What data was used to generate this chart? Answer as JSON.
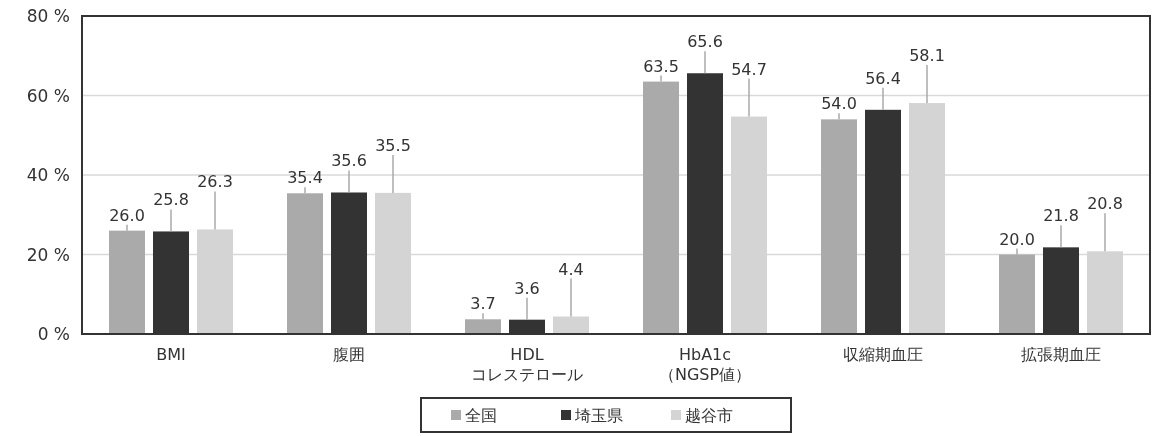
{
  "chart_data": {
    "type": "bar",
    "categories": [
      "BMI",
      "腹囲",
      "HDL\nコレステロール",
      "HbA1c\n（NGSP値）",
      "収縮期血圧",
      "拡張期血圧"
    ],
    "series": [
      {
        "name": "全国",
        "color": "#aaaaaa",
        "values": [
          26.0,
          35.4,
          3.7,
          63.5,
          54.0,
          20.0
        ],
        "value_labels": [
          "26.0",
          "35.4",
          "3.7",
          "63.5",
          "54.0",
          "20.0"
        ]
      },
      {
        "name": "埼玉県",
        "color": "#333333",
        "values": [
          25.8,
          35.6,
          3.6,
          65.6,
          56.4,
          21.8
        ],
        "value_labels": [
          "25.8",
          "35.6",
          "3.6",
          "65.6",
          "56.4",
          "21.8"
        ]
      },
      {
        "name": "越谷市",
        "color": "#d4d4d4",
        "values": [
          26.3,
          35.5,
          4.4,
          54.7,
          58.1,
          20.8
        ],
        "value_labels": [
          "26.3",
          "35.5",
          "4.4",
          "54.7",
          "58.1",
          "20.8"
        ]
      }
    ],
    "ylim": [
      0,
      80
    ],
    "yticks": [
      {
        "value": 0,
        "label": "0 %"
      },
      {
        "value": 20,
        "label": "20 %"
      },
      {
        "value": 40,
        "label": "40 %"
      },
      {
        "value": 60,
        "label": "60 %"
      },
      {
        "value": 80,
        "label": "80 %"
      }
    ],
    "grid": "y",
    "legend": "bottom"
  }
}
